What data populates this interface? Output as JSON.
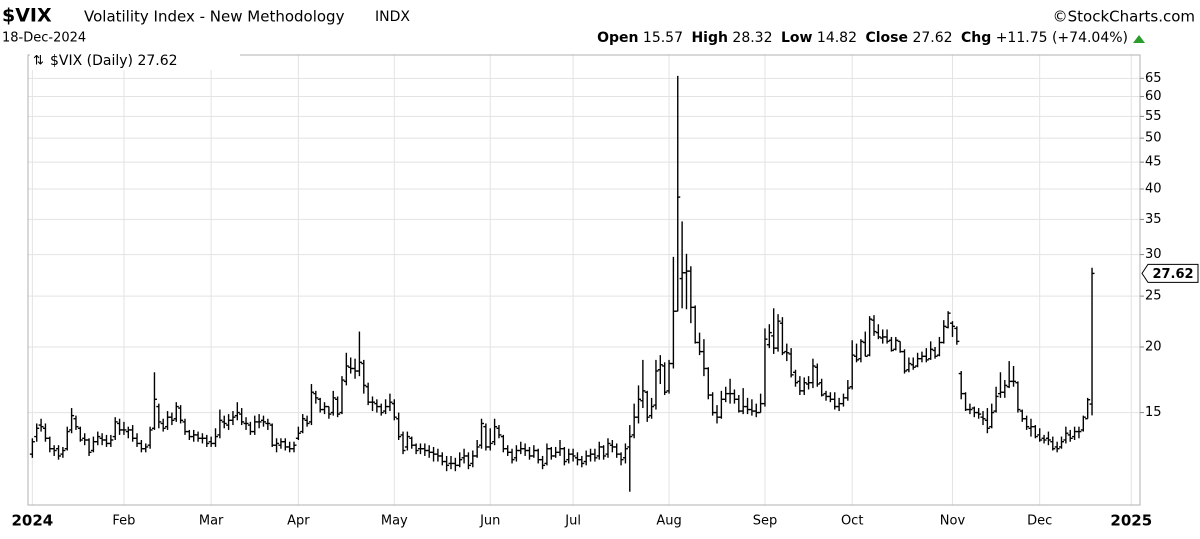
{
  "chart_data": {
    "type": "ohlc",
    "title": "$VIX",
    "subtitle": "Volatility Index - New Methodology",
    "exchange": "INDX",
    "source": "©StockCharts.com",
    "date": "18-Dec-2024",
    "header": {
      "open_label": "Open",
      "open": 15.57,
      "high_label": "High",
      "high": 28.32,
      "low_label": "Low",
      "low": 14.82,
      "close_label": "Close",
      "close": 27.62,
      "change_label": "Chg",
      "change": "+11.75 (+74.04%)"
    },
    "legend": "$VIX (Daily)",
    "color": "#000000",
    "log_scale": true,
    "grid": true,
    "xlim": [
      -1,
      254
    ],
    "ylim": [
      10,
      72
    ],
    "xticks": [
      {
        "value": 0,
        "label": "2024"
      },
      {
        "value": 21,
        "label": "Feb"
      },
      {
        "value": 41,
        "label": "Mar"
      },
      {
        "value": 61,
        "label": "Apr"
      },
      {
        "value": 83,
        "label": "May"
      },
      {
        "value": 105,
        "label": "Jun"
      },
      {
        "value": 124,
        "label": "Jul"
      },
      {
        "value": 146,
        "label": "Aug"
      },
      {
        "value": 168,
        "label": "Sep"
      },
      {
        "value": 188,
        "label": "Oct"
      },
      {
        "value": 211,
        "label": "Nov"
      },
      {
        "value": 231,
        "label": "Dec"
      },
      {
        "value": 252,
        "label": "2025"
      }
    ],
    "yticks": [
      15,
      20,
      25,
      30,
      35,
      40,
      45,
      50,
      55,
      60,
      65
    ],
    "open": [
      12.5,
      13.5,
      14.2,
      14.0,
      13.4,
      12.8,
      12.8,
      12.5,
      12.8,
      13.9,
      14.6,
      14.0,
      13.4,
      13.3,
      12.7,
      13.2,
      13.4,
      13.3,
      13.1,
      13.5,
      14.3,
      13.9,
      13.8,
      13.9,
      13.4,
      13.1,
      12.8,
      13.0,
      14.0,
      15.4,
      14.3,
      14.1,
      14.7,
      14.6,
      15.3,
      14.4,
      13.8,
      13.5,
      13.6,
      13.4,
      13.4,
      13.2,
      13.1,
      13.6,
      14.4,
      14.2,
      14.5,
      14.8,
      14.9,
      14.3,
      14.2,
      13.8,
      14.4,
      14.5,
      14.3,
      14.2,
      13.0,
      13.0,
      13.2,
      12.9,
      12.8,
      13.4,
      13.8,
      14.5,
      14.4,
      16.3,
      15.9,
      15.2,
      15.4,
      15.0,
      15.9,
      15.0,
      17.2,
      18.3,
      18.2,
      18.0,
      18.6,
      16.8,
      15.7,
      15.6,
      15.4,
      15.1,
      15.4,
      15.6,
      14.6,
      13.6,
      12.9,
      13.4,
      13.0,
      12.8,
      12.8,
      12.7,
      12.6,
      12.5,
      12.4,
      12.1,
      12.0,
      12.0,
      11.9,
      12.3,
      12.4,
      12.0,
      12.4,
      13.0,
      14.1,
      12.9,
      13.2,
      14.0,
      13.5,
      12.8,
      12.6,
      12.3,
      12.7,
      12.8,
      12.7,
      12.4,
      12.7,
      12.2,
      12.0,
      12.8,
      12.4,
      12.6,
      12.8,
      12.2,
      12.5,
      12.3,
      12.2,
      12.1,
      12.4,
      12.5,
      12.4,
      12.9,
      12.5,
      13.0,
      12.9,
      12.5,
      12.3,
      12.9,
      13.6,
      14.7,
      15.8,
      16.4,
      14.8,
      15.5,
      18.1,
      18.4,
      16.5,
      18.6,
      23.4,
      27.0,
      27.7,
      27.9,
      23.8,
      20.4,
      19.6,
      18.2,
      16.2,
      15.0,
      14.7,
      15.9,
      16.3,
      16.3,
      15.9,
      15.1,
      15.4,
      15.2,
      15.1,
      15.0,
      15.6,
      20.2,
      21.0,
      19.9,
      22.2,
      19.6,
      19.4,
      17.9,
      17.2,
      16.5,
      17.0,
      17.1,
      18.3,
      17.1,
      16.3,
      16.1,
      15.9,
      15.4,
      15.6,
      16.0,
      16.8,
      19.2,
      19.0,
      20.4,
      19.3,
      22.5,
      21.3,
      20.8,
      20.9,
      20.6,
      19.8,
      20.5,
      19.6,
      18.1,
      18.5,
      18.4,
      19.0,
      19.2,
      19.0,
      19.7,
      19.3,
      20.4,
      21.8,
      22.2,
      21.7,
      17.8,
      16.3,
      15.2,
      15.3,
      15.0,
      14.7,
      14.5,
      14.1,
      15.1,
      16.3,
      16.4,
      16.8,
      17.2,
      17.1,
      15.1,
      14.6,
      14.0,
      14.1,
      13.6,
      13.4,
      13.4,
      13.2,
      12.9,
      12.9,
      13.3,
      13.6,
      13.5,
      13.8,
      13.9,
      14.6,
      15.57
    ],
    "high": [
      13.4,
      14.3,
      14.6,
      14.3,
      13.5,
      13.0,
      13.0,
      12.9,
      14.1,
      15.3,
      14.8,
      14.1,
      13.7,
      13.4,
      13.5,
      13.8,
      13.7,
      13.6,
      13.6,
      14.7,
      14.6,
      14.4,
      14.1,
      14.2,
      13.7,
      13.3,
      13.1,
      14.1,
      17.9,
      15.6,
      14.6,
      15.1,
      15.0,
      15.7,
      15.5,
      14.6,
      13.9,
      13.9,
      13.8,
      13.7,
      13.6,
      13.5,
      14.0,
      15.2,
      14.8,
      14.9,
      15.1,
      15.7,
      15.3,
      14.7,
      14.4,
      14.8,
      14.9,
      14.8,
      14.6,
      14.3,
      13.4,
      13.4,
      13.4,
      13.2,
      13.2,
      14.1,
      14.9,
      14.8,
      17.0,
      16.5,
      16.0,
      15.7,
      15.4,
      16.5,
      16.1,
      17.6,
      19.5,
      19.1,
      19.0,
      21.4,
      18.9,
      17.1,
      16.1,
      15.9,
      15.6,
      15.9,
      16.3,
      15.9,
      15.0,
      13.8,
      13.8,
      13.5,
      13.1,
      13.1,
      13.1,
      13.0,
      12.9,
      12.8,
      12.6,
      12.4,
      12.4,
      12.3,
      12.6,
      12.8,
      12.6,
      12.7,
      13.3,
      14.6,
      14.3,
      14.0,
      14.6,
      14.2,
      13.6,
      13.0,
      12.8,
      13.0,
      13.2,
      13.1,
      12.9,
      13.0,
      12.8,
      12.4,
      13.1,
      12.9,
      12.9,
      13.3,
      12.9,
      12.8,
      12.8,
      12.6,
      12.4,
      12.7,
      12.8,
      12.8,
      13.2,
      13.0,
      13.4,
      13.3,
      13.1,
      12.6,
      13.1,
      14.2,
      15.6,
      16.9,
      18.9,
      16.5,
      16.0,
      18.9,
      19.3,
      18.7,
      18.9,
      29.7,
      65.7,
      34.7,
      30.1,
      28.5,
      24.0,
      21.3,
      20.7,
      18.3,
      16.4,
      15.5,
      16.5,
      16.8,
      17.4,
      16.6,
      16.2,
      16.7,
      16.0,
      15.9,
      15.6,
      16.3,
      21.7,
      22.1,
      23.7,
      23.1,
      22.8,
      20.3,
      19.9,
      18.1,
      17.6,
      17.5,
      17.6,
      19.0,
      18.6,
      17.4,
      16.5,
      16.4,
      16.4,
      16.0,
      16.3,
      17.3,
      20.6,
      20.3,
      20.7,
      21.4,
      22.9,
      23.0,
      22.1,
      21.6,
      21.6,
      20.9,
      20.9,
      20.5,
      19.8,
      19.1,
      19.1,
      19.5,
      19.6,
      19.9,
      20.5,
      20.0,
      20.9,
      22.5,
      23.4,
      22.4,
      21.9,
      18.0,
      16.4,
      15.6,
      15.4,
      15.3,
      15.1,
      15.3,
      15.6,
      16.8,
      17.9,
      17.3,
      18.8,
      18.4,
      17.2,
      15.2,
      14.8,
      14.6,
      14.2,
      14.0,
      13.6,
      13.8,
      13.5,
      13.2,
      13.5,
      14.1,
      13.9,
      14.1,
      14.1,
      14.8,
      16.0,
      28.32
    ],
    "low": [
      12.3,
      13.2,
      13.8,
      13.2,
      12.6,
      12.4,
      12.2,
      12.3,
      12.7,
      13.7,
      13.9,
      13.2,
      13.0,
      12.4,
      12.6,
      13.0,
      13.0,
      12.9,
      12.9,
      13.3,
      13.6,
      13.6,
      13.4,
      13.2,
      12.9,
      12.6,
      12.6,
      12.8,
      13.9,
      14.0,
      13.8,
      13.9,
      14.2,
      14.4,
      14.3,
      13.6,
      13.3,
      13.2,
      13.2,
      13.1,
      12.9,
      12.9,
      12.9,
      13.4,
      14.0,
      13.9,
      14.2,
      14.5,
      14.2,
      13.9,
      13.6,
      13.6,
      14.0,
      14.1,
      13.9,
      12.9,
      12.6,
      12.8,
      12.7,
      12.6,
      12.6,
      13.3,
      13.7,
      14.1,
      14.2,
      15.6,
      15.0,
      14.9,
      14.6,
      14.8,
      14.7,
      14.9,
      16.9,
      17.8,
      17.4,
      17.6,
      16.3,
      15.5,
      15.1,
      15.0,
      14.8,
      14.9,
      15.1,
      14.5,
      13.3,
      12.5,
      12.7,
      12.8,
      12.5,
      12.5,
      12.4,
      12.3,
      12.1,
      12.1,
      11.9,
      11.6,
      11.7,
      11.6,
      11.8,
      12.0,
      11.7,
      11.8,
      12.3,
      12.8,
      12.7,
      12.7,
      13.0,
      13.4,
      12.6,
      12.4,
      12.0,
      12.1,
      12.5,
      12.4,
      12.2,
      12.3,
      12.0,
      11.7,
      11.9,
      12.2,
      12.3,
      12.4,
      11.9,
      12.0,
      12.1,
      11.9,
      11.8,
      11.9,
      12.1,
      12.1,
      12.2,
      12.2,
      12.3,
      12.6,
      12.3,
      11.9,
      12.0,
      10.6,
      13.4,
      14.3,
      15.3,
      14.4,
      14.6,
      15.2,
      17.0,
      16.2,
      16.3,
      18.2,
      23.4,
      23.7,
      23.6,
      22.2,
      20.3,
      19.3,
      17.6,
      15.9,
      14.8,
      14.3,
      14.6,
      15.7,
      15.6,
      15.6,
      15.0,
      14.9,
      14.9,
      14.8,
      14.7,
      15.0,
      15.4,
      19.9,
      19.4,
      19.6,
      19.3,
      18.8,
      17.5,
      16.8,
      16.2,
      16.2,
      16.6,
      16.7,
      16.8,
      16.1,
      15.8,
      15.7,
      15.2,
      15.1,
      15.4,
      15.8,
      16.6,
      18.7,
      18.7,
      19.2,
      19.2,
      21.0,
      20.7,
      20.3,
      20.3,
      19.6,
      19.7,
      19.5,
      17.8,
      17.9,
      18.1,
      18.3,
      18.7,
      18.7,
      18.9,
      19.0,
      19.2,
      20.3,
      21.7,
      20.9,
      20.2,
      15.9,
      15.1,
      14.9,
      14.7,
      14.6,
      14.2,
      13.7,
      14.0,
      15.0,
      16.0,
      16.0,
      16.7,
      16.8,
      15.0,
      14.4,
      13.9,
      13.5,
      13.4,
      13.2,
      13.1,
      13.0,
      12.7,
      12.6,
      12.8,
      13.1,
      13.2,
      13.3,
      13.4,
      13.8,
      14.6,
      14.82
    ],
    "close": [
      13.2,
      14.0,
      14.1,
      13.4,
      12.8,
      12.7,
      12.4,
      12.7,
      13.8,
      14.8,
      14.1,
      13.3,
      13.3,
      12.6,
      13.2,
      13.5,
      13.3,
      13.1,
      13.3,
      14.4,
      13.9,
      13.9,
      13.9,
      13.4,
      13.1,
      12.8,
      12.9,
      13.9,
      15.9,
      14.4,
      14.0,
      14.7,
      14.5,
      15.4,
      14.5,
      13.8,
      13.5,
      13.6,
      13.4,
      13.4,
      13.1,
      13.1,
      13.5,
      14.5,
      14.3,
      14.5,
      14.7,
      15.0,
      14.4,
      14.3,
      13.8,
      14.4,
      14.4,
      14.4,
      14.3,
      13.0,
      13.1,
      13.2,
      12.9,
      12.8,
      13.0,
      13.7,
      14.6,
      14.3,
      16.4,
      16.0,
      15.2,
      15.4,
      14.9,
      16.0,
      14.9,
      17.3,
      18.4,
      18.2,
      18.0,
      18.7,
      16.9,
      15.7,
      15.7,
      15.4,
      15.0,
      15.4,
      15.7,
      14.7,
      13.5,
      12.7,
      13.5,
      13.0,
      12.7,
      12.8,
      12.7,
      12.6,
      12.5,
      12.4,
      12.1,
      11.9,
      12.0,
      11.9,
      12.2,
      12.4,
      11.9,
      12.4,
      12.9,
      14.3,
      12.9,
      13.1,
      14.1,
      13.6,
      12.8,
      12.6,
      12.2,
      12.7,
      12.8,
      12.7,
      12.4,
      12.7,
      12.2,
      11.9,
      12.8,
      12.4,
      12.6,
      12.8,
      12.1,
      12.5,
      12.4,
      12.2,
      12.0,
      12.4,
      12.5,
      12.3,
      12.9,
      12.4,
      13.1,
      12.9,
      12.5,
      12.2,
      12.8,
      13.5,
      14.7,
      15.9,
      16.5,
      14.7,
      15.4,
      18.0,
      18.5,
      16.4,
      18.6,
      23.4,
      38.6,
      27.7,
      27.9,
      23.8,
      20.4,
      19.6,
      18.2,
      16.2,
      15.0,
      14.7,
      15.9,
      16.3,
      16.3,
      15.9,
      15.1,
      15.4,
      15.2,
      15.1,
      15.0,
      15.6,
      20.7,
      21.3,
      19.9,
      22.4,
      19.5,
      19.5,
      17.7,
      17.1,
      16.5,
      17.1,
      17.1,
      18.4,
      17.0,
      16.2,
      16.1,
      15.9,
      15.4,
      15.6,
      16.0,
      16.7,
      19.3,
      18.9,
      20.5,
      19.2,
      22.6,
      21.4,
      20.9,
      20.9,
      20.5,
      19.7,
      20.6,
      19.6,
      18.0,
      18.6,
      18.3,
      19.0,
      19.2,
      18.9,
      19.8,
      19.2,
      20.4,
      21.9,
      23.2,
      21.9,
      20.5,
      16.3,
      15.2,
      15.2,
      15.0,
      14.9,
      14.6,
      14.0,
      15.0,
      16.1,
      16.4,
      16.9,
      17.2,
      17.2,
      15.2,
      14.6,
      14.1,
      14.1,
      13.5,
      13.3,
      13.3,
      13.3,
      12.8,
      12.8,
      13.2,
      13.7,
      13.4,
      13.8,
      13.8,
      14.7,
      15.87,
      27.62
    ]
  }
}
